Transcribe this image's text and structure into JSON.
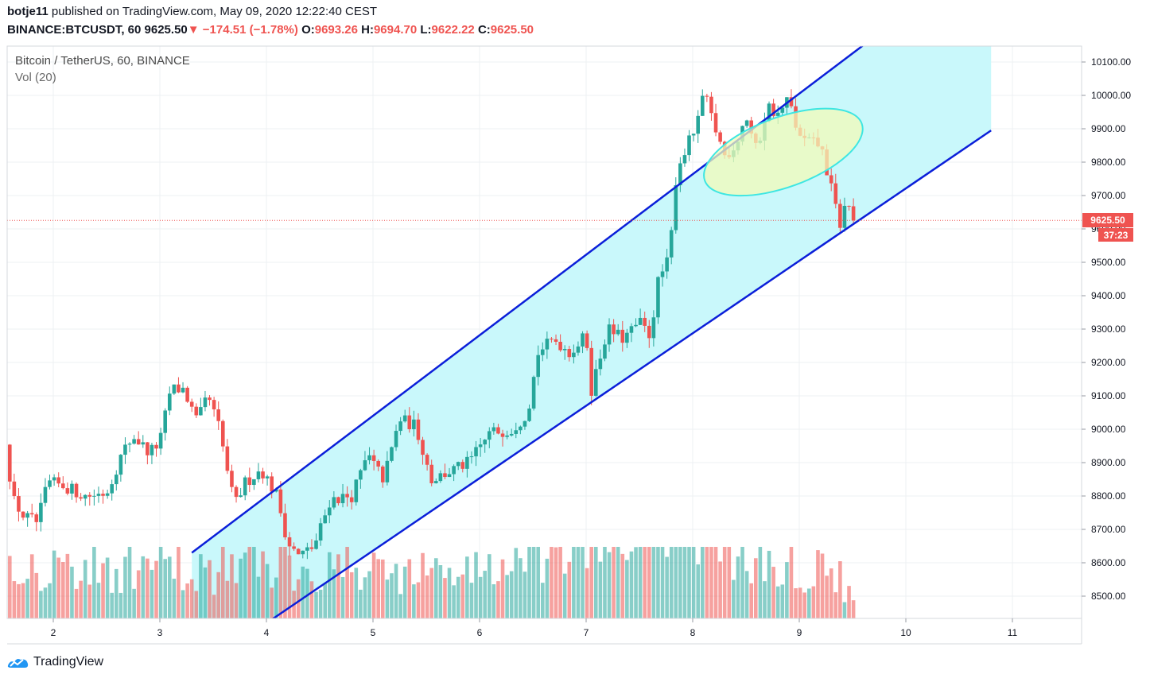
{
  "header": {
    "author": "botje11",
    "published_text": "published on TradingView.com, May 09, 2020 12:22:40 CEST",
    "symbol_interval": "BINANCE:BTCUSDT, 60",
    "last": "9625.50",
    "arrow": "▼",
    "change": "−174.51 (−1.78%)",
    "open_label": "O:",
    "open": "9693.26",
    "high_label": "H:",
    "high": "9694.70",
    "low_label": "L:",
    "low": "9622.22",
    "close_label": "C:",
    "close": "9625.50"
  },
  "legend": {
    "title": "Bitcoin / TetherUS, 60, BINANCE",
    "volume": "Vol (20)"
  },
  "price_axis": {
    "current_price": "9625.50",
    "countdown": "37:23"
  },
  "footer": {
    "brand": "TradingView"
  },
  "colors": {
    "up": "#26a69a",
    "down": "#ef5350",
    "channel_line": "#0b1fd9",
    "channel_fill": "#c9f8fb",
    "ellipse_fill": "#f2fbb8",
    "ellipse_stroke": "#3ee6e2"
  },
  "chart_data": {
    "type": "candlestick",
    "title": "Bitcoin / TetherUS, 60, BINANCE",
    "x_ticks": [
      "2",
      "3",
      "4",
      "5",
      "6",
      "7",
      "8",
      "9",
      "10",
      "11"
    ],
    "x_tick_values": [
      2,
      3,
      4,
      5,
      6,
      7,
      8,
      9,
      10,
      11
    ],
    "xlim": [
      1.54,
      11.7
    ],
    "y_ticks": [
      "8500.00",
      "8600.00",
      "8700.00",
      "8800.00",
      "8900.00",
      "9000.00",
      "9100.00",
      "9200.00",
      "9300.00",
      "9400.00",
      "9500.00",
      "9600.00",
      "9700.00",
      "9800.00",
      "9900.00",
      "10000.00",
      "10100.00"
    ],
    "ylim": [
      8430,
      10155
    ],
    "last_price": 9625.5,
    "volume_indicator": "Vol (20)",
    "price_anchors": [
      [
        1.55,
        8970
      ],
      [
        1.62,
        8790
      ],
      [
        1.72,
        8740
      ],
      [
        1.85,
        8720
      ],
      [
        1.95,
        8840
      ],
      [
        2.1,
        8830
      ],
      [
        2.3,
        8800
      ],
      [
        2.5,
        8810
      ],
      [
        2.65,
        8930
      ],
      [
        2.75,
        8980
      ],
      [
        2.9,
        8930
      ],
      [
        3.0,
        8960
      ],
      [
        3.1,
        9120
      ],
      [
        3.22,
        9120
      ],
      [
        3.35,
        9020
      ],
      [
        3.45,
        9100
      ],
      [
        3.55,
        9010
      ],
      [
        3.7,
        8770
      ],
      [
        3.8,
        8840
      ],
      [
        3.95,
        8880
      ],
      [
        4.1,
        8800
      ],
      [
        4.2,
        8660
      ],
      [
        4.3,
        8620
      ],
      [
        4.45,
        8650
      ],
      [
        4.6,
        8790
      ],
      [
        4.8,
        8800
      ],
      [
        4.95,
        8920
      ],
      [
        5.1,
        8850
      ],
      [
        5.25,
        9030
      ],
      [
        5.4,
        9010
      ],
      [
        5.55,
        8850
      ],
      [
        5.7,
        8870
      ],
      [
        5.9,
        8900
      ],
      [
        6.1,
        8990
      ],
      [
        6.3,
        9000
      ],
      [
        6.45,
        9050
      ],
      [
        6.55,
        9230
      ],
      [
        6.7,
        9270
      ],
      [
        6.85,
        9230
      ],
      [
        7.0,
        9280
      ],
      [
        7.05,
        9120
      ],
      [
        7.2,
        9300
      ],
      [
        7.35,
        9270
      ],
      [
        7.5,
        9320
      ],
      [
        7.6,
        9280
      ],
      [
        7.68,
        9450
      ],
      [
        7.78,
        9510
      ],
      [
        7.85,
        9780
      ],
      [
        7.95,
        9850
      ],
      [
        8.05,
        9920
      ],
      [
        8.1,
        10010
      ],
      [
        8.2,
        9910
      ],
      [
        8.3,
        9820
      ],
      [
        8.4,
        9850
      ],
      [
        8.5,
        9940
      ],
      [
        8.6,
        9830
      ],
      [
        8.7,
        9970
      ],
      [
        8.8,
        9940
      ],
      [
        8.9,
        9990
      ],
      [
        9.0,
        9870
      ],
      [
        9.1,
        9860
      ],
      [
        9.2,
        9850
      ],
      [
        9.3,
        9720
      ],
      [
        9.38,
        9610
      ],
      [
        9.45,
        9690
      ],
      [
        9.5,
        9625.5
      ]
    ],
    "volume_anchors": [
      [
        1.55,
        1300
      ],
      [
        3.3,
        1100
      ],
      [
        4.1,
        1300
      ],
      [
        5.5,
        1050
      ],
      [
        6.5,
        1200
      ],
      [
        7.65,
        2400
      ],
      [
        7.85,
        2500
      ],
      [
        8.05,
        2000
      ],
      [
        8.5,
        1300
      ],
      [
        9.4,
        1000
      ],
      [
        9.5,
        300
      ]
    ],
    "channel": {
      "upper": [
        [
          3.3,
          8630
        ],
        [
          9.6,
          10150
        ]
      ],
      "lower": [
        [
          4.05,
          8430
        ],
        [
          10.8,
          9895
        ]
      ],
      "shade_until": 10.8
    },
    "ellipse": {
      "center": [
        8.85,
        9830
      ],
      "label": ""
    }
  }
}
